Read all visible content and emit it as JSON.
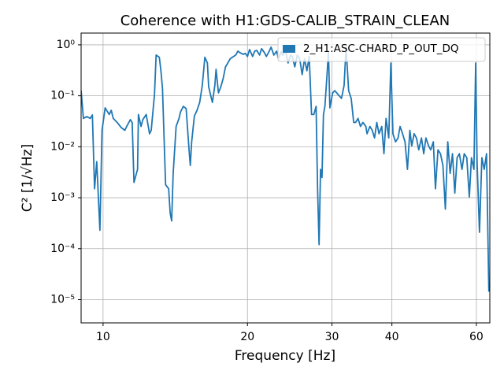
{
  "chart_data": {
    "type": "line",
    "title": "Coherence with H1:GDS-CALIB_STRAIN_CLEAN",
    "x_label": "Frequency [Hz]",
    "y_label": "C² [1/√Hz]",
    "xscale": "log",
    "yscale": "log",
    "grid": true,
    "legend_position": "upper right",
    "xlim": [
      9.0,
      64.0
    ],
    "ylim": [
      3.5e-06,
      1.7
    ],
    "xticks": [
      10,
      20,
      30,
      40,
      60
    ],
    "yticks": [
      {
        "value": 1,
        "label": "10⁰"
      },
      {
        "value": 0.1,
        "label": "10⁻¹"
      },
      {
        "value": 0.01,
        "label": "10⁻²"
      },
      {
        "value": 0.001,
        "label": "10⁻³"
      },
      {
        "value": 0.0001,
        "label": "10⁻⁴"
      },
      {
        "value": 1e-05,
        "label": "10⁻⁵"
      }
    ],
    "series": [
      {
        "name": "2_H1:ASC-CHARD_P_OUT_DQ",
        "color": "#1f77b4",
        "x": [
          9.0,
          9.1,
          9.25,
          9.4,
          9.5,
          9.6,
          9.7,
          9.85,
          9.95,
          10.1,
          10.3,
          10.4,
          10.5,
          10.7,
          10.9,
          11.1,
          11.2,
          11.4,
          11.5,
          11.6,
          11.8,
          11.85,
          12.0,
          12.1,
          12.3,
          12.5,
          12.6,
          12.8,
          12.9,
          13.1,
          13.2,
          13.3,
          13.5,
          13.7,
          13.8,
          13.9,
          14.0,
          14.2,
          14.4,
          14.5,
          14.7,
          14.9,
          15.1,
          15.2,
          15.3,
          15.5,
          15.7,
          15.9,
          16.1,
          16.3,
          16.5,
          16.6,
          16.9,
          17.1,
          17.2,
          17.4,
          17.6,
          17.8,
          18.0,
          18.2,
          18.4,
          18.6,
          18.9,
          19.1,
          19.3,
          19.6,
          19.8,
          20.0,
          20.2,
          20.5,
          20.7,
          20.9,
          21.2,
          21.4,
          21.7,
          21.9,
          22.2,
          22.4,
          22.7,
          23.0,
          23.2,
          23.5,
          23.7,
          24.0,
          24.3,
          24.6,
          24.8,
          25.1,
          25.4,
          25.7,
          26.0,
          26.3,
          26.6,
          26.9,
          27.2,
          27.5,
          27.8,
          28.0,
          28.2,
          28.4,
          28.6,
          28.8,
          29.0,
          29.3,
          29.5,
          29.7,
          30.1,
          30.4,
          30.9,
          31.4,
          31.8,
          32.1,
          32.5,
          32.9,
          33.3,
          33.6,
          34.0,
          34.4,
          34.8,
          35.3,
          35.5,
          36.0,
          36.4,
          36.8,
          37.2,
          37.6,
          38.1,
          38.5,
          38.9,
          39.4,
          39.8,
          40.2,
          40.7,
          41.2,
          41.6,
          42.1,
          42.6,
          43.1,
          43.6,
          44.0,
          44.5,
          45.0,
          45.5,
          46.1,
          46.6,
          47.1,
          47.7,
          48.2,
          48.8,
          49.3,
          49.9,
          50.5,
          51.1,
          51.7,
          52.3,
          52.9,
          53.5,
          54.1,
          54.7,
          55.3,
          56.0,
          56.6,
          57.3,
          58.0,
          58.6,
          59.3,
          59.8,
          60.2,
          60.9,
          61.6,
          62.3,
          63.0,
          63.7
        ],
        "values": [
          0.126,
          0.036,
          0.039,
          0.036,
          0.042,
          0.0015,
          0.0051,
          0.00023,
          0.021,
          0.058,
          0.043,
          0.052,
          0.036,
          0.03,
          0.024,
          0.021,
          0.025,
          0.034,
          0.03,
          0.002,
          0.0036,
          0.043,
          0.025,
          0.034,
          0.043,
          0.018,
          0.021,
          0.106,
          0.63,
          0.57,
          0.31,
          0.14,
          0.0018,
          0.0015,
          0.0005,
          0.00035,
          0.003,
          0.025,
          0.036,
          0.048,
          0.062,
          0.056,
          0.0094,
          0.0043,
          0.0125,
          0.04,
          0.052,
          0.074,
          0.16,
          0.57,
          0.44,
          0.15,
          0.074,
          0.16,
          0.33,
          0.114,
          0.15,
          0.22,
          0.37,
          0.44,
          0.53,
          0.57,
          0.63,
          0.75,
          0.7,
          0.65,
          0.68,
          0.59,
          0.81,
          0.59,
          0.75,
          0.78,
          0.63,
          0.84,
          0.7,
          0.59,
          0.75,
          0.9,
          0.63,
          0.75,
          0.53,
          0.73,
          0.63,
          0.78,
          0.44,
          0.63,
          0.59,
          0.37,
          0.63,
          0.53,
          0.26,
          0.53,
          0.31,
          0.59,
          0.043,
          0.043,
          0.062,
          0.0015,
          0.00012,
          0.0036,
          0.0025,
          0.043,
          0.062,
          0.26,
          0.75,
          0.058,
          0.114,
          0.126,
          0.106,
          0.089,
          0.16,
          0.9,
          0.126,
          0.089,
          0.03,
          0.03,
          0.036,
          0.025,
          0.03,
          0.025,
          0.018,
          0.025,
          0.021,
          0.0149,
          0.03,
          0.018,
          0.025,
          0.0073,
          0.036,
          0.0149,
          0.44,
          0.018,
          0.0125,
          0.0149,
          0.025,
          0.018,
          0.0125,
          0.0036,
          0.021,
          0.0104,
          0.018,
          0.0149,
          0.0087,
          0.0149,
          0.0073,
          0.0149,
          0.0104,
          0.0087,
          0.0125,
          0.0015,
          0.0087,
          0.0073,
          0.0043,
          0.0006,
          0.0125,
          0.003,
          0.0073,
          0.00123,
          0.0061,
          0.0073,
          0.0036,
          0.0073,
          0.0061,
          0.00103,
          0.0061,
          0.0036,
          0.44,
          0.0051,
          0.00021,
          0.0061,
          0.0036,
          0.0073,
          1.43e-05
        ]
      }
    ]
  }
}
